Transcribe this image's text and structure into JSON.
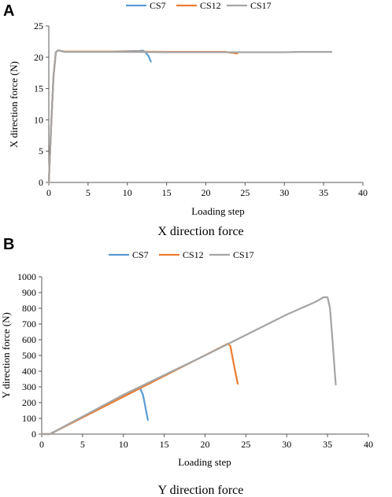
{
  "chart_data": [
    {
      "panel": "A",
      "type": "line",
      "title": "",
      "caption": "X direction force",
      "xlabel": "Loading step",
      "ylabel": "X direction force (N)",
      "xlim": [
        0,
        40
      ],
      "ylim": [
        0,
        25
      ],
      "xticks": [
        0,
        5,
        10,
        15,
        20,
        25,
        30,
        35,
        40
      ],
      "yticks": [
        0,
        5,
        10,
        15,
        20,
        25
      ],
      "grid": false,
      "legend_position": "top",
      "series": [
        {
          "name": "CS7",
          "color": "#5b9bd5",
          "points": [
            [
              0,
              0
            ],
            [
              0.3,
              9
            ],
            [
              0.6,
              17
            ],
            [
              0.9,
              20.8
            ],
            [
              1.2,
              21.1
            ],
            [
              1.6,
              21
            ],
            [
              2,
              20.9
            ],
            [
              4,
              20.9
            ],
            [
              6,
              20.9
            ],
            [
              8,
              20.9
            ],
            [
              10,
              20.95
            ],
            [
              11.5,
              21
            ],
            [
              12,
              21.05
            ],
            [
              12.3,
              20.8
            ],
            [
              12.7,
              20.2
            ],
            [
              13,
              19.3
            ]
          ]
        },
        {
          "name": "CS12",
          "color": "#ed7d31",
          "points": [
            [
              0,
              0
            ],
            [
              0.3,
              9
            ],
            [
              0.6,
              17
            ],
            [
              0.9,
              20.8
            ],
            [
              1.2,
              21.1
            ],
            [
              1.6,
              21
            ],
            [
              2,
              20.9
            ],
            [
              5,
              20.9
            ],
            [
              10,
              20.9
            ],
            [
              15,
              20.85
            ],
            [
              20,
              20.85
            ],
            [
              22.5,
              20.85
            ],
            [
              23,
              20.75
            ],
            [
              23.5,
              20.7
            ],
            [
              24,
              20.6
            ]
          ]
        },
        {
          "name": "CS17",
          "color": "#a5a5a5",
          "points": [
            [
              0,
              0
            ],
            [
              0.3,
              9
            ],
            [
              0.6,
              17
            ],
            [
              0.9,
              20.8
            ],
            [
              1.2,
              21.1
            ],
            [
              1.6,
              21
            ],
            [
              2,
              20.85
            ],
            [
              5,
              20.85
            ],
            [
              10,
              20.85
            ],
            [
              15,
              20.8
            ],
            [
              20,
              20.8
            ],
            [
              25,
              20.8
            ],
            [
              30,
              20.8
            ],
            [
              32,
              20.85
            ],
            [
              34,
              20.85
            ],
            [
              36,
              20.85
            ]
          ]
        }
      ]
    },
    {
      "panel": "B",
      "type": "line",
      "title": "",
      "caption": "Y direction force",
      "xlabel": "Loading step",
      "ylabel": "Y direction force (N)",
      "xlim": [
        0,
        40
      ],
      "ylim": [
        0,
        1000
      ],
      "xticks": [
        0,
        5,
        10,
        15,
        20,
        25,
        30,
        35,
        40
      ],
      "yticks": [
        0,
        100,
        200,
        300,
        400,
        500,
        600,
        700,
        800,
        900,
        1000
      ],
      "grid": false,
      "legend_position": "top",
      "series": [
        {
          "name": "CS7",
          "color": "#5b9bd5",
          "points": [
            [
              0,
              0
            ],
            [
              1,
              0
            ],
            [
              12,
              295
            ],
            [
              12.4,
              250
            ],
            [
              12.7,
              170
            ],
            [
              13,
              90
            ]
          ]
        },
        {
          "name": "CS12",
          "color": "#ed7d31",
          "points": [
            [
              0,
              0
            ],
            [
              1,
              0
            ],
            [
              22.8,
              575
            ],
            [
              23.1,
              560
            ],
            [
              23.5,
              450
            ],
            [
              24,
              320
            ]
          ]
        },
        {
          "name": "CS17",
          "color": "#a5a5a5",
          "points": [
            [
              0,
              0
            ],
            [
              1,
              0
            ],
            [
              10,
              250
            ],
            [
              20,
              500
            ],
            [
              30,
              760
            ],
            [
              33.5,
              840
            ],
            [
              34.5,
              870
            ],
            [
              35,
              870
            ],
            [
              35.3,
              800
            ],
            [
              35.6,
              600
            ],
            [
              36,
              315
            ]
          ]
        }
      ]
    }
  ]
}
